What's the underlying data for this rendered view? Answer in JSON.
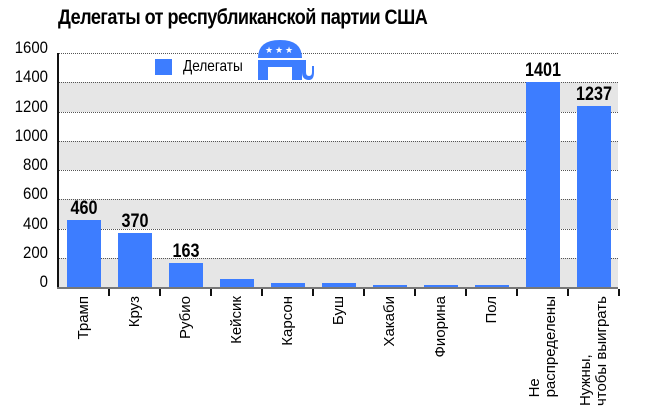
{
  "title": "Делегаты от республиканской партии США",
  "legend": {
    "label": "Делегаты",
    "color": "#3d7dff",
    "icon": "republican-elephant-icon"
  },
  "colors": {
    "bar": "#3d7dff",
    "band_gray": "#e6e6e6",
    "band_white": "#ffffff"
  },
  "y_ticks": [
    "1600",
    "1400",
    "1200",
    "1000",
    "800",
    "600",
    "400",
    "200",
    "0"
  ],
  "bars": [
    {
      "label": "Трамп",
      "value": 460,
      "value_label": "460"
    },
    {
      "label": "Круз",
      "value": 370,
      "value_label": "370"
    },
    {
      "label": "Рубио",
      "value": 163,
      "value_label": "163"
    },
    {
      "label": "Кейсик",
      "value": 54,
      "value_label": ""
    },
    {
      "label": "Карсон",
      "value": 28,
      "value_label": ""
    },
    {
      "label": "Буш",
      "value": 28,
      "value_label": ""
    },
    {
      "label": "Хакаби",
      "value": 16,
      "value_label": ""
    },
    {
      "label": "Фиорина",
      "value": 16,
      "value_label": ""
    },
    {
      "label": "Пол",
      "value": 16,
      "value_label": ""
    },
    {
      "label": "Не\nраспределены",
      "value": 1401,
      "value_label": "1401"
    },
    {
      "label": "Нужны,\nчтобы выиграть",
      "value": 1237,
      "value_label": "1237"
    }
  ],
  "chart_data": {
    "type": "bar",
    "title": "Делегаты от республиканской партии США",
    "xlabel": "",
    "ylabel": "",
    "ylim": [
      0,
      1600
    ],
    "yticks": [
      0,
      200,
      400,
      600,
      800,
      1000,
      1200,
      1400,
      1600
    ],
    "grid": true,
    "legend_position": "top-left inside",
    "categories": [
      "Трамп",
      "Круз",
      "Рубио",
      "Кейсик",
      "Карсон",
      "Буш",
      "Хакаби",
      "Фиорина",
      "Пол",
      "Не распределены",
      "Нужны, чтобы выиграть"
    ],
    "series": [
      {
        "name": "Делегаты",
        "values": [
          460,
          370,
          163,
          54,
          28,
          28,
          16,
          16,
          16,
          1401,
          1237
        ]
      }
    ],
    "data_labels": {
      "Трамп": 460,
      "Круз": 370,
      "Рубио": 163,
      "Не распределены": 1401,
      "Нужны, чтобы выиграть": 1237
    }
  }
}
